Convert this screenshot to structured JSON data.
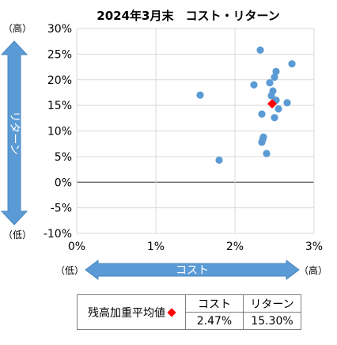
{
  "chart_data": {
    "type": "scatter",
    "title": "2024年3月末　コスト・リターン",
    "xlabel": "コスト",
    "ylabel": "リターン",
    "x_low_label": "（低）",
    "x_high_label": "（高）",
    "y_low_label": "（低）",
    "y_high_label": "（高）",
    "xlim": [
      0,
      3
    ],
    "ylim": [
      -10,
      30
    ],
    "x_ticks": [
      "0%",
      "1%",
      "2%",
      "3%"
    ],
    "y_ticks": [
      "-10%",
      "-5%",
      "0%",
      "5%",
      "10%",
      "15%",
      "20%",
      "25%",
      "30%"
    ],
    "grid": true,
    "series": [
      {
        "marker": "circle",
        "color": "#5b9bd5",
        "points": [
          [
            1.56,
            17.0
          ],
          [
            1.8,
            4.3
          ],
          [
            2.24,
            19.0
          ],
          [
            2.32,
            25.8
          ],
          [
            2.34,
            13.3
          ],
          [
            2.34,
            7.8
          ],
          [
            2.35,
            8.3
          ],
          [
            2.36,
            8.8
          ],
          [
            2.4,
            5.6
          ],
          [
            2.44,
            19.4
          ],
          [
            2.46,
            16.9
          ],
          [
            2.48,
            17.8
          ],
          [
            2.5,
            12.6
          ],
          [
            2.5,
            20.5
          ],
          [
            2.52,
            21.6
          ],
          [
            2.52,
            16.0
          ],
          [
            2.55,
            14.3
          ],
          [
            2.66,
            15.5
          ],
          [
            2.72,
            23.1
          ]
        ]
      },
      {
        "marker": "diamond",
        "color": "#ff0000",
        "points": [
          [
            2.47,
            15.3
          ]
        ]
      }
    ]
  },
  "summary": {
    "label": "残高加重平均値",
    "cost_header": "コスト",
    "return_header": "リターン",
    "cost_value": "2.47%",
    "return_value": "15.30%"
  }
}
